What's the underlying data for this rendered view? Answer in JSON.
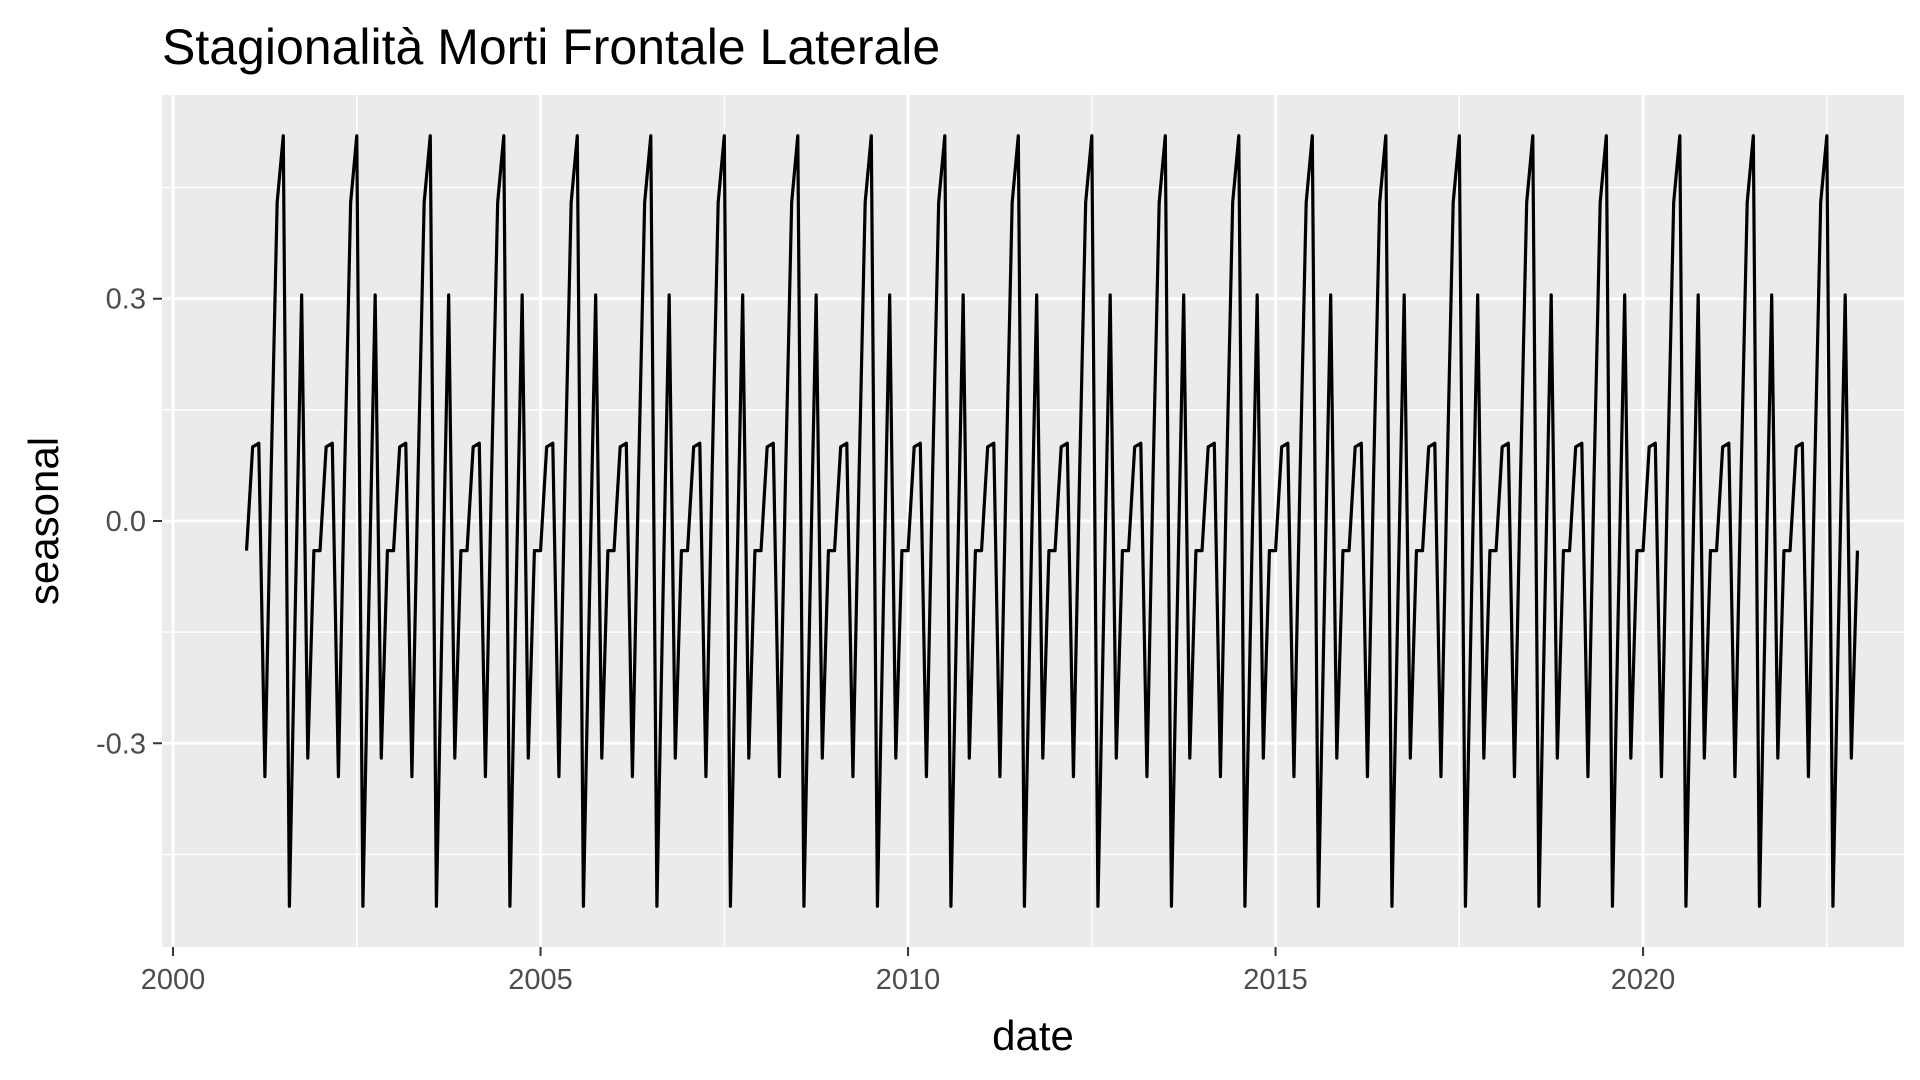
{
  "chart_data": {
    "type": "line",
    "title": "Stagionalità Morti Frontale Laterale",
    "xlabel": "date",
    "ylabel": "seasonal",
    "xlim": [
      1999.85,
      2023.55
    ],
    "ylim": [
      -0.575,
      0.575
    ],
    "x_ticks": [
      2000,
      2005,
      2010,
      2015,
      2020
    ],
    "x_tick_labels": [
      "2000",
      "2005",
      "2010",
      "2015",
      "2020"
    ],
    "y_ticks": [
      -0.3,
      0.0,
      0.3
    ],
    "y_tick_labels": [
      "-0.3",
      "0.0",
      "0.3"
    ],
    "grid": true,
    "legend": "none",
    "line_color": "#000000",
    "panel_background": "#ebebeb",
    "series": [
      {
        "start": "2001-01",
        "end": "2022-12",
        "frequency": "monthly",
        "seasonal_pattern": [
          -0.04,
          0.1,
          0.105,
          -0.345,
          0.06,
          0.43,
          0.52,
          -0.52,
          -0.1,
          0.305,
          -0.32,
          -0.04
        ]
      }
    ]
  }
}
